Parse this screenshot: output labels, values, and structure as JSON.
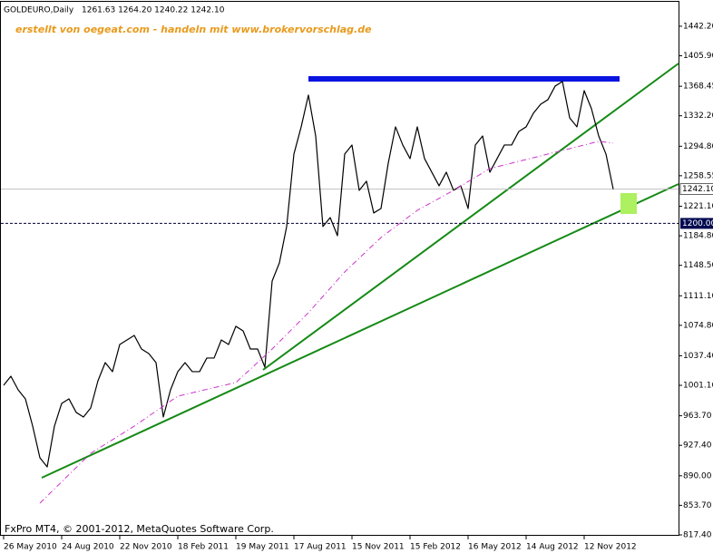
{
  "chart_data": {
    "type": "line",
    "title": "GOLDEURO,Daily",
    "ohlc_text": "1261.63 1264.20 1240.22 1242.10",
    "subtitle": "erstellt von oegeat.com - handeln mit www.brokervorschlag.de",
    "footer": "FxPro MT4, © 2001-2012, MetaQuotes Software Corp.",
    "categories": [
      "26 May 2010",
      null,
      null,
      null,
      null,
      null,
      null,
      null,
      "24 Aug 2010",
      null,
      null,
      null,
      null,
      null,
      null,
      null,
      "22 Nov 2010",
      null,
      null,
      null,
      null,
      null,
      null,
      null,
      "18 Feb 2011",
      null,
      null,
      null,
      null,
      null,
      null,
      null,
      "19 May 2011",
      null,
      null,
      null,
      null,
      null,
      null,
      null,
      "17 Aug 2011",
      null,
      null,
      null,
      null,
      null,
      null,
      null,
      "15 Nov 2011",
      null,
      null,
      null,
      null,
      null,
      null,
      null,
      "15 Feb 2012",
      null,
      null,
      null,
      null,
      null,
      null,
      null,
      "16 May 2012",
      null,
      null,
      null,
      null,
      null,
      null,
      null,
      "14 Aug 2012",
      null,
      null,
      null,
      null,
      null,
      null,
      null,
      "12 Nov 2012",
      null,
      null,
      null,
      null
    ],
    "series": [
      {
        "color": "#000000",
        "width": 1.2,
        "values": [
          1001.2,
          1012.3,
          995.6,
          984.5,
          951.0,
          912.1,
          900.9,
          951.0,
          978.9,
          984.5,
          967.8,
          962.2,
          973.3,
          1006.7,
          1029.0,
          1017.9,
          1051.3,
          1056.8,
          1062.4,
          1045.7,
          1040.1,
          1029.0,
          962.2,
          995.6,
          1017.9,
          1029.0,
          1017.9,
          1017.9,
          1034.6,
          1034.6,
          1056.8,
          1051.3,
          1073.6,
          1068.0,
          1045.7,
          1045.7,
          1023.4,
          1129.2,
          1151.5,
          1196.1,
          1285.2,
          1318.6,
          1357.6,
          1307.4,
          1196.1,
          1207.2,
          1184.9,
          1285.2,
          1296.3,
          1240.6,
          1251.8,
          1212.8,
          1218.3,
          1274.0,
          1318.6,
          1296.3,
          1279.6,
          1318.6,
          1279.6,
          1262.9,
          1246.2,
          1262.9,
          1240.6,
          1246.2,
          1218.3,
          1296.3,
          1307.4,
          1262.9,
          1279.6,
          1296.3,
          1296.3,
          1313.0,
          1318.6,
          1335.3,
          1346.4,
          1352.0,
          1368.7,
          1374.3,
          1329.7,
          1318.6,
          1363.1,
          1340.9,
          1307.4,
          1285.2,
          1242.1
        ]
      },
      {
        "color": "#cc33cc",
        "width": 1,
        "dash": "6 3 1 3",
        "values": [
          null,
          null,
          null,
          null,
          null,
          856.4,
          865.1,
          873.9,
          882.6,
          891.4,
          900.1,
          908.8,
          917.6,
          923.2,
          928.7,
          934.3,
          939.9,
          945.4,
          951.0,
          957.1,
          963.3,
          969.4,
          975.5,
          981.7,
          987.8,
          989.9,
          992.0,
          994.1,
          996.2,
          998.2,
          1000.3,
          1002.4,
          1004.5,
          1012.7,
          1021.0,
          1029.2,
          1037.5,
          1045.7,
          1054.6,
          1063.5,
          1072.5,
          1081.4,
          1090.3,
          1100.3,
          1110.3,
          1120.4,
          1130.4,
          1140.4,
          1148.9,
          1157.3,
          1165.8,
          1174.2,
          1182.7,
          1189.4,
          1196.1,
          1202.7,
          1209.4,
          1216.1,
          1221.0,
          1225.9,
          1230.8,
          1235.7,
          1240.6,
          1245.9,
          1251.3,
          1256.6,
          1262.0,
          1267.3,
          1269.5,
          1271.8,
          1274.0,
          1276.3,
          1278.5,
          1280.7,
          1282.9,
          1285.2,
          1287.4,
          1289.6,
          1291.8,
          1294.1,
          1296.3,
          1298.6,
          1300.8,
          1299.7,
          1298.6
        ]
      }
    ],
    "ylim": [
      817.4,
      1472.2
    ],
    "yticks": [
      {
        "value": 1442.2,
        "label": "1442.20"
      },
      {
        "value": 1405.9,
        "label": "1405.90"
      },
      {
        "value": 1368.45,
        "label": "1368.45"
      },
      {
        "value": 1332.2,
        "label": "1332.20"
      },
      {
        "value": 1294.8,
        "label": "1294.80"
      },
      {
        "value": 1258.55,
        "label": "1258.55"
      },
      {
        "value": 1221.1,
        "label": "1221.10"
      },
      {
        "value": 1184.8,
        "label": "1184.80"
      },
      {
        "value": 1148.5,
        "label": "1148.50"
      },
      {
        "value": 1111.1,
        "label": "1111.10"
      },
      {
        "value": 1074.8,
        "label": "1074.80"
      },
      {
        "value": 1037.4,
        "label": "1037.40"
      },
      {
        "value": 1001.1,
        "label": "1001.10"
      },
      {
        "value": 963.7,
        "label": "963.70"
      },
      {
        "value": 927.4,
        "label": "927.40"
      },
      {
        "value": 890,
        "label": "890.00"
      },
      {
        "value": 853.7,
        "label": "853.70"
      },
      {
        "value": 817.4,
        "label": "817.40"
      }
    ],
    "current_price": {
      "value": 1242.1,
      "label": "1242.10"
    },
    "level": {
      "value": 1200,
      "label": "1200.00"
    }
  }
}
